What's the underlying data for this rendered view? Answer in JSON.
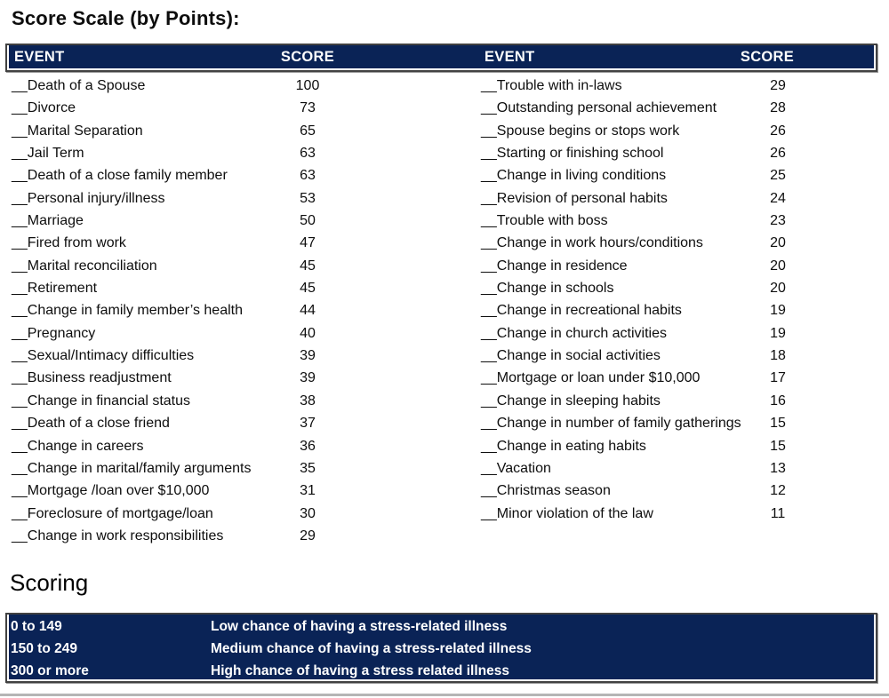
{
  "page": {
    "title": "Score Scale (by Points):"
  },
  "score_table": {
    "header": {
      "event": "EVENT",
      "score": "SCORE"
    },
    "blank_prefix": "__",
    "left_rows": [
      {
        "event": "Death of a Spouse",
        "score": "100"
      },
      {
        "event": "Divorce",
        "score": "73"
      },
      {
        "event": "Marital Separation",
        "score": "65"
      },
      {
        "event": "Jail Term",
        "score": "63"
      },
      {
        "event": "Death of a close family member",
        "score": "63"
      },
      {
        "event": "Personal injury/illness",
        "score": "53"
      },
      {
        "event": "Marriage",
        "score": "50"
      },
      {
        "event": "Fired from work",
        "score": "47"
      },
      {
        "event": "Marital reconciliation",
        "score": "45"
      },
      {
        "event": "Retirement",
        "score": "45"
      },
      {
        "event": "Change in family member’s health",
        "score": "44"
      },
      {
        "event": "Pregnancy",
        "score": "40"
      },
      {
        "event": "Sexual/Intimacy difficulties",
        "score": "39"
      },
      {
        "event": "Business readjustment",
        "score": "39"
      },
      {
        "event": "Change in financial status",
        "score": "38"
      },
      {
        "event": "Death of a close friend",
        "score": "37"
      },
      {
        "event": "Change in careers",
        "score": "36"
      },
      {
        "event": "Change in marital/family arguments",
        "score": "35"
      },
      {
        "event": "Mortgage /loan over $10,000",
        "score": "31"
      },
      {
        "event": "Foreclosure of mortgage/loan",
        "score": "30"
      },
      {
        "event": "Change in work responsibilities",
        "score": "29"
      }
    ],
    "right_rows": [
      {
        "event": "Trouble with in-laws",
        "score": "29"
      },
      {
        "event": "Outstanding personal achievement",
        "score": "28"
      },
      {
        "event": "Spouse begins or stops work",
        "score": "26"
      },
      {
        "event": "Starting or finishing school",
        "score": "26"
      },
      {
        "event": "Change in living conditions",
        "score": "25"
      },
      {
        "event": "Revision of personal habits",
        "score": "24"
      },
      {
        "event": "Trouble with boss",
        "score": "23"
      },
      {
        "event": "Change in work hours/conditions",
        "score": "20"
      },
      {
        "event": "Change in residence",
        "score": "20"
      },
      {
        "event": "Change in schools",
        "score": "20"
      },
      {
        "event": "Change in recreational habits",
        "score": "19"
      },
      {
        "event": "Change in church activities",
        "score": "19"
      },
      {
        "event": "Change in social activities",
        "score": "18"
      },
      {
        "event": "Mortgage or loan under $10,000",
        "score": "17"
      },
      {
        "event": "Change in sleeping habits",
        "score": "16"
      },
      {
        "event": "Change in number of family gatherings",
        "score": "15"
      },
      {
        "event": "Change in eating habits",
        "score": "15"
      },
      {
        "event": "Vacation",
        "score": "13"
      },
      {
        "event": "Christmas season",
        "score": "12"
      },
      {
        "event": "Minor violation of the law",
        "score": "11"
      }
    ]
  },
  "scoring": {
    "heading": "Scoring",
    "rows": [
      {
        "range": "0 to 149",
        "description": "Low chance of having a stress-related illness"
      },
      {
        "range": "150 to 249",
        "description": "Medium chance of having a stress-related illness"
      },
      {
        "range": "300 or more",
        "description": "High chance of having a stress related illness"
      }
    ]
  },
  "colors": {
    "navy": "#0a2356",
    "header_text": "#ffffff",
    "body_text": "#000000",
    "border_dark": "#414141"
  }
}
